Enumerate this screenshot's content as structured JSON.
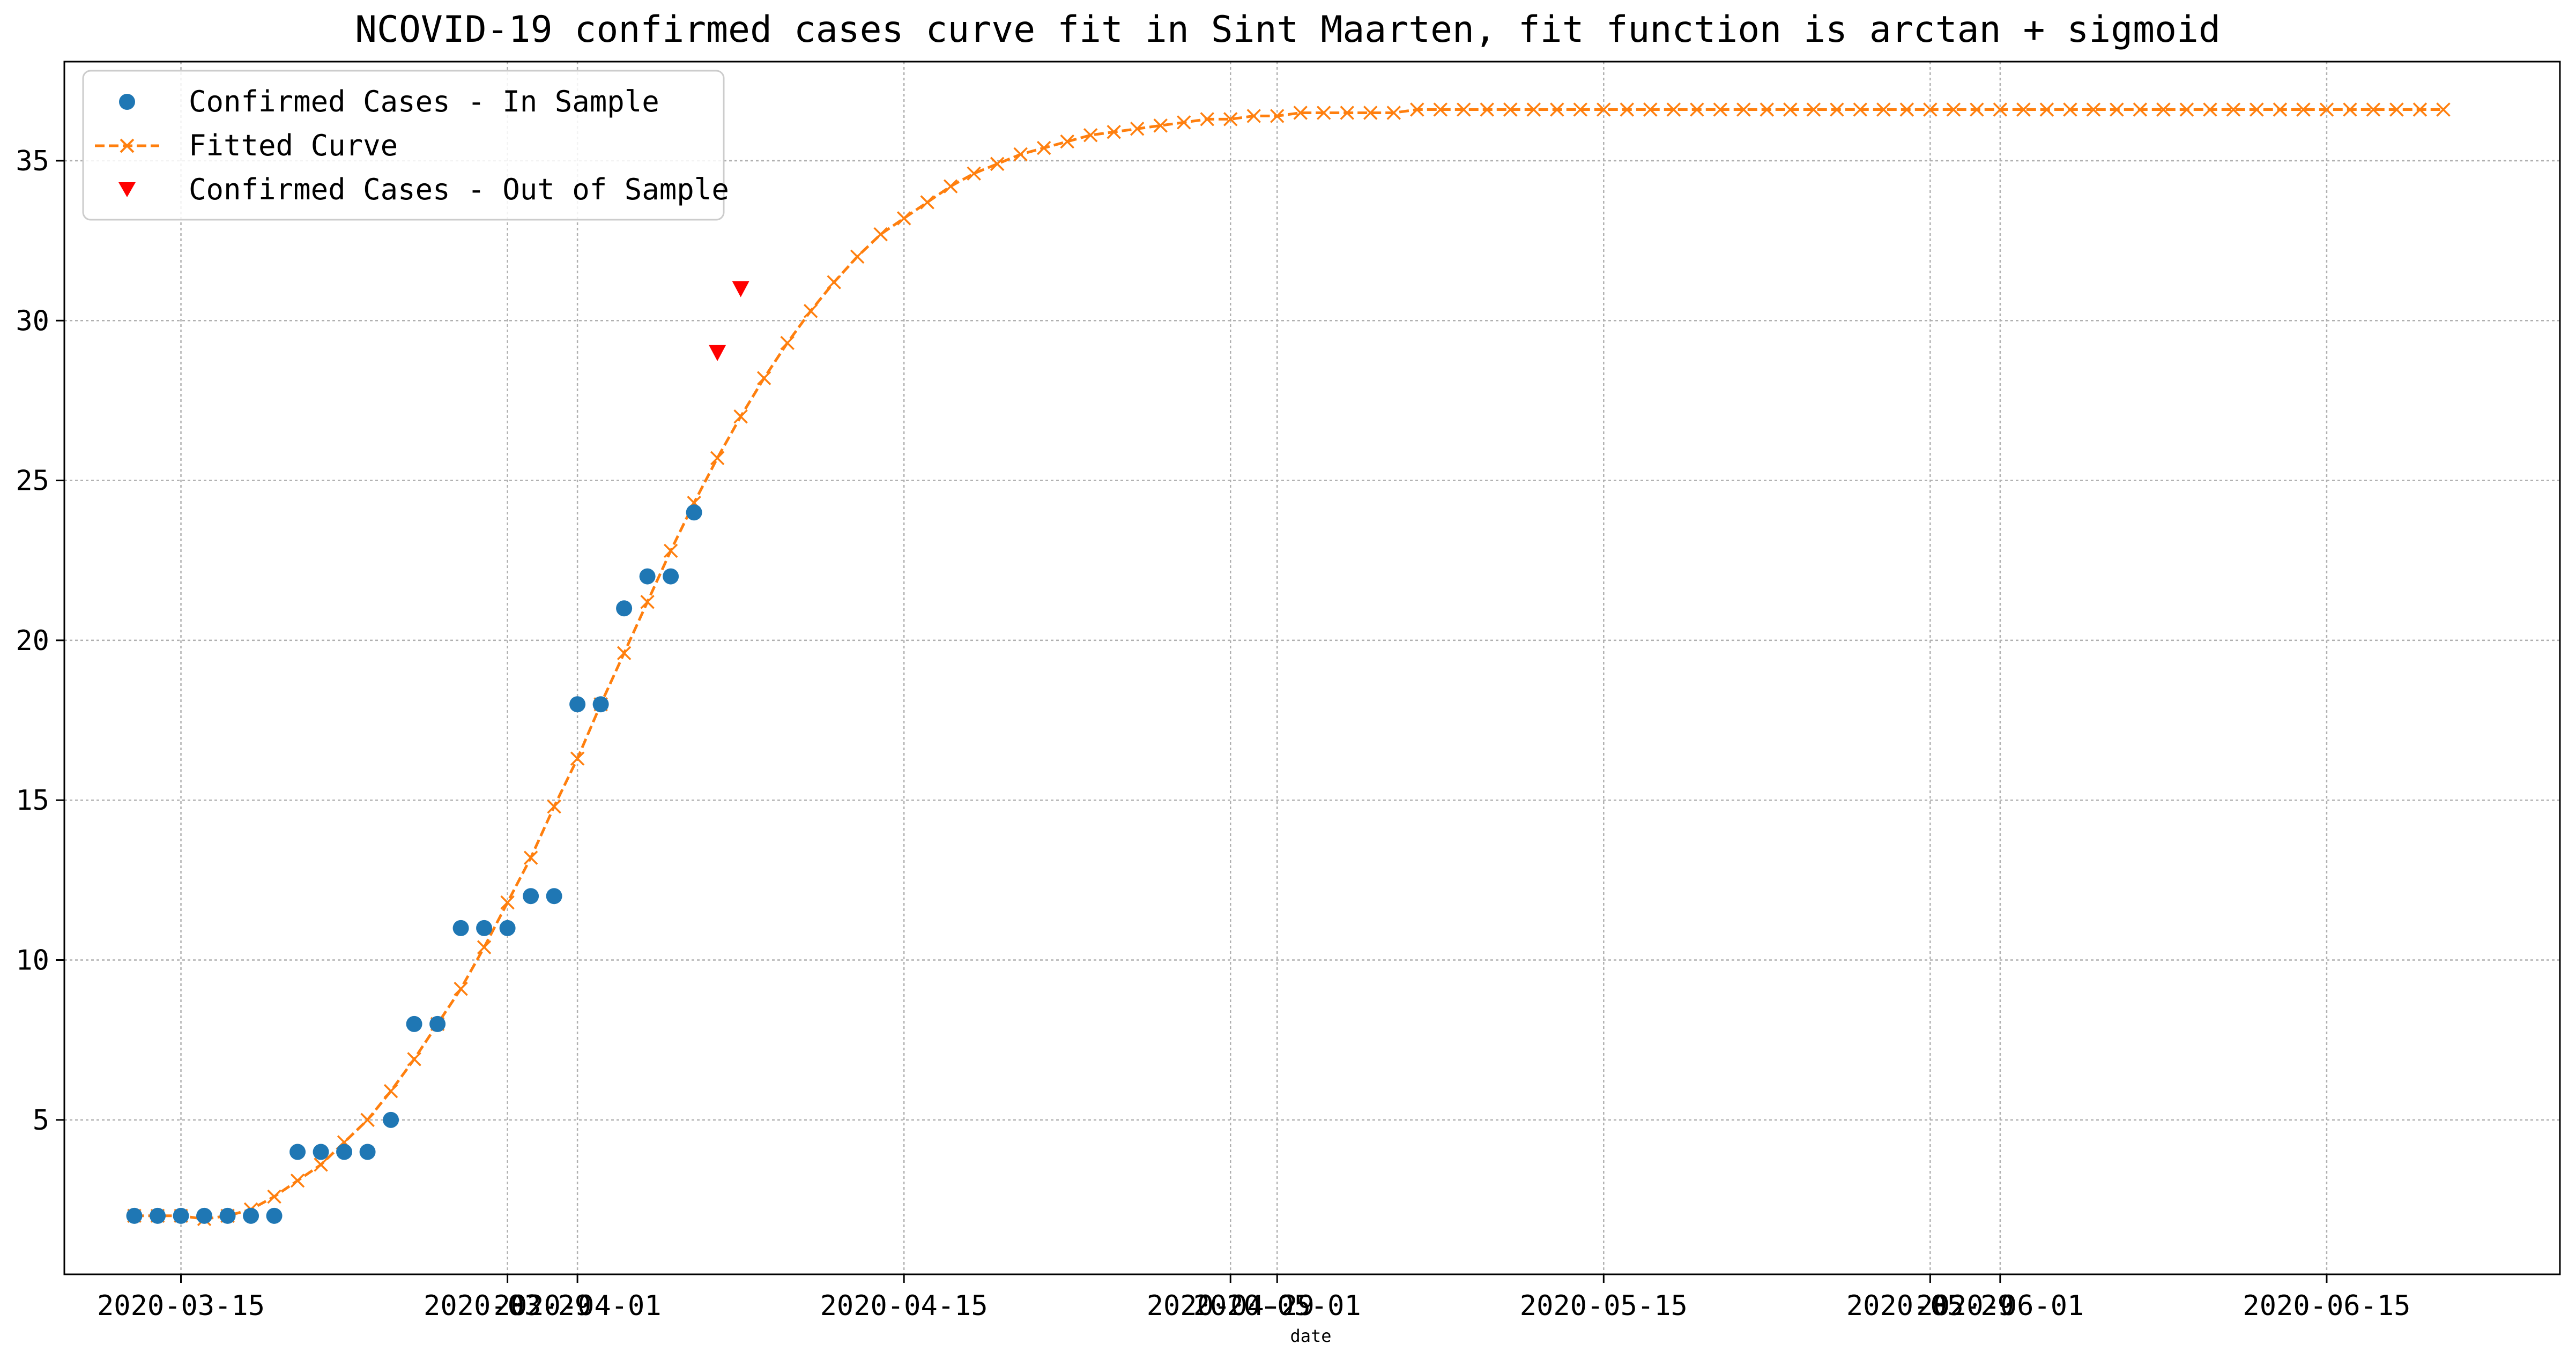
{
  "chart_data": {
    "type": "line",
    "title": "NCOVID-19 confirmed cases curve fit in Sint Maarten, fit function is arctan + sigmoid",
    "xlabel": "date",
    "ylabel": "",
    "x_axis": {
      "type": "date",
      "range": [
        "2020-03-10",
        "2020-06-25"
      ],
      "ticks": [
        {
          "date": "2020-03-15",
          "label": "2020-03-15"
        },
        {
          "date": "2020-03-29",
          "label": "2020-03-29"
        },
        {
          "date": "2020-04-01",
          "label": "2020-04-01"
        },
        {
          "date": "2020-04-15",
          "label": "2020-04-15"
        },
        {
          "date": "2020-04-29",
          "label": "2020-04-29"
        },
        {
          "date": "2020-05-01",
          "label": "2020-05-01"
        },
        {
          "date": "2020-05-15",
          "label": "2020-05-15"
        },
        {
          "date": "2020-05-29",
          "label": "2020-05-29"
        },
        {
          "date": "2020-06-01",
          "label": "2020-06-01"
        },
        {
          "date": "2020-06-15",
          "label": "2020-06-15"
        }
      ]
    },
    "y_axis": {
      "range": [
        0.17,
        38.1
      ],
      "ticks": [
        5,
        10,
        15,
        20,
        25,
        30,
        35
      ]
    },
    "grid": true,
    "legend_position": "top-left",
    "series": [
      {
        "name": "Confirmed Cases - In Sample",
        "style": "markers",
        "marker": "circle",
        "color": "#1f77b4",
        "points": [
          {
            "x": "2020-03-13",
            "y": 2
          },
          {
            "x": "2020-03-14",
            "y": 2
          },
          {
            "x": "2020-03-15",
            "y": 2
          },
          {
            "x": "2020-03-16",
            "y": 2
          },
          {
            "x": "2020-03-17",
            "y": 2
          },
          {
            "x": "2020-03-18",
            "y": 2
          },
          {
            "x": "2020-03-19",
            "y": 2
          },
          {
            "x": "2020-03-20",
            "y": 4
          },
          {
            "x": "2020-03-21",
            "y": 4
          },
          {
            "x": "2020-03-22",
            "y": 4
          },
          {
            "x": "2020-03-23",
            "y": 4
          },
          {
            "x": "2020-03-24",
            "y": 5
          },
          {
            "x": "2020-03-25",
            "y": 8
          },
          {
            "x": "2020-03-26",
            "y": 8
          },
          {
            "x": "2020-03-27",
            "y": 11
          },
          {
            "x": "2020-03-28",
            "y": 11
          },
          {
            "x": "2020-03-29",
            "y": 11
          },
          {
            "x": "2020-03-30",
            "y": 12
          },
          {
            "x": "2020-03-31",
            "y": 12
          },
          {
            "x": "2020-04-01",
            "y": 18
          },
          {
            "x": "2020-04-02",
            "y": 18
          },
          {
            "x": "2020-04-03",
            "y": 21
          },
          {
            "x": "2020-04-04",
            "y": 22
          },
          {
            "x": "2020-04-05",
            "y": 22
          },
          {
            "x": "2020-04-06",
            "y": 24
          }
        ]
      },
      {
        "name": "Fitted Curve",
        "style": "dashed-line-x-markers",
        "marker": "x",
        "color": "#ff7f0e",
        "start_date": "2020-03-13",
        "values": [
          2.0,
          2.0,
          2.0,
          1.9,
          2.0,
          2.2,
          2.6,
          3.1,
          3.6,
          4.3,
          5.0,
          5.9,
          6.9,
          8.0,
          9.1,
          10.4,
          11.8,
          13.2,
          14.8,
          16.3,
          18.0,
          19.6,
          21.2,
          22.8,
          24.3,
          25.7,
          27.0,
          28.2,
          29.3,
          30.3,
          31.2,
          32.0,
          32.7,
          33.2,
          33.7,
          34.2,
          34.6,
          34.9,
          35.2,
          35.4,
          35.6,
          35.8,
          35.9,
          36.0,
          36.1,
          36.2,
          36.3,
          36.3,
          36.4,
          36.4,
          36.5,
          36.5,
          36.5,
          36.5,
          36.5,
          36.6,
          36.6,
          36.6,
          36.6,
          36.6,
          36.6,
          36.6,
          36.6,
          36.6,
          36.6,
          36.6,
          36.6,
          36.6,
          36.6,
          36.6,
          36.6,
          36.6,
          36.6,
          36.6,
          36.6,
          36.6,
          36.6,
          36.6,
          36.6,
          36.6,
          36.6,
          36.6,
          36.6,
          36.6,
          36.6,
          36.6,
          36.6,
          36.6,
          36.6,
          36.6,
          36.6,
          36.6,
          36.6,
          36.6,
          36.6,
          36.6,
          36.6,
          36.6,
          36.6,
          36.6
        ]
      },
      {
        "name": "Confirmed Cases - Out of Sample",
        "style": "markers",
        "marker": "triangle-down",
        "color": "#ff0000",
        "points": [
          {
            "x": "2020-04-07",
            "y": 29
          },
          {
            "x": "2020-04-08",
            "y": 31
          }
        ]
      }
    ],
    "colors": {
      "grid": "#b0b0b0",
      "axes": "#000000",
      "text": "#000000"
    }
  }
}
